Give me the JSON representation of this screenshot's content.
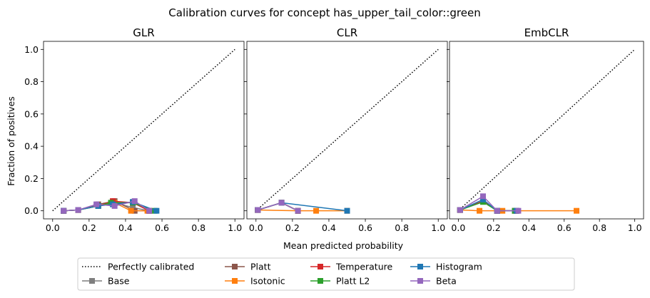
{
  "chart_data": {
    "type": "line",
    "title": "Calibration curves for concept has_upper_tail_color::green",
    "xlabel": "Mean predicted probability",
    "ylabel": "Fraction of positives",
    "xlim": [
      -0.05,
      1.05
    ],
    "ylim": [
      -0.05,
      1.05
    ],
    "xticks": [
      "0.0",
      "0.2",
      "0.4",
      "0.6",
      "0.8",
      "1.0"
    ],
    "yticks": [
      "0.0",
      "0.2",
      "0.4",
      "0.6",
      "0.8",
      "1.0"
    ],
    "grid": false,
    "shared_y": true,
    "legend": {
      "placement": "bottom-center",
      "columns": 5,
      "entries": [
        {
          "name": "Perfectly calibrated",
          "color": "#000000",
          "style": "dotted"
        },
        {
          "name": "Base",
          "color": "#7f7f7f",
          "style": "square"
        },
        {
          "name": "Platt",
          "color": "#8c564b",
          "style": "square"
        },
        {
          "name": "Isotonic",
          "color": "#ff7f0e",
          "style": "square"
        },
        {
          "name": "Temperature",
          "color": "#d62728",
          "style": "square"
        },
        {
          "name": "Platt L2",
          "color": "#2ca02c",
          "style": "square"
        },
        {
          "name": "Histogram",
          "color": "#1f77b4",
          "style": "square"
        },
        {
          "name": "Beta",
          "color": "#9467bd",
          "style": "square"
        }
      ]
    },
    "panels": [
      {
        "title": "GLR",
        "series": [
          {
            "name": "Base",
            "color": "#7f7f7f",
            "points": [
              [
                0.06,
                0.0
              ],
              [
                0.14,
                0.005
              ],
              [
                0.25,
                0.03
              ],
              [
                0.34,
                0.05
              ],
              [
                0.44,
                0.02
              ],
              [
                0.53,
                0.0
              ]
            ]
          },
          {
            "name": "Platt",
            "color": "#8c564b",
            "points": [
              [
                0.06,
                0.0
              ],
              [
                0.14,
                0.005
              ],
              [
                0.25,
                0.04
              ],
              [
                0.34,
                0.06
              ],
              [
                0.45,
                0.0
              ],
              [
                0.53,
                0.0
              ]
            ]
          },
          {
            "name": "Isotonic",
            "color": "#ff7f0e",
            "points": [
              [
                0.06,
                0.0
              ],
              [
                0.14,
                0.005
              ],
              [
                0.25,
                0.03
              ],
              [
                0.34,
                0.05
              ],
              [
                0.43,
                0.0
              ],
              [
                0.52,
                0.0
              ]
            ]
          },
          {
            "name": "Temperature",
            "color": "#d62728",
            "points": [
              [
                0.06,
                0.0
              ],
              [
                0.14,
                0.005
              ],
              [
                0.25,
                0.03
              ],
              [
                0.33,
                0.06
              ],
              [
                0.44,
                0.05
              ],
              [
                0.53,
                0.0
              ]
            ]
          },
          {
            "name": "Platt L2",
            "color": "#2ca02c",
            "points": [
              [
                0.06,
                0.0
              ],
              [
                0.14,
                0.005
              ],
              [
                0.25,
                0.03
              ],
              [
                0.32,
                0.05
              ],
              [
                0.44,
                0.05
              ],
              [
                0.56,
                0.0
              ]
            ]
          },
          {
            "name": "Histogram",
            "color": "#1f77b4",
            "points": [
              [
                0.06,
                0.0
              ],
              [
                0.14,
                0.005
              ],
              [
                0.25,
                0.03
              ],
              [
                0.33,
                0.04
              ],
              [
                0.44,
                0.055
              ],
              [
                0.57,
                0.0
              ]
            ]
          },
          {
            "name": "Beta",
            "color": "#9467bd",
            "points": [
              [
                0.06,
                0.0
              ],
              [
                0.14,
                0.005
              ],
              [
                0.24,
                0.04
              ],
              [
                0.34,
                0.03
              ],
              [
                0.45,
                0.06
              ],
              [
                0.53,
                0.0
              ]
            ]
          }
        ]
      },
      {
        "title": "CLR",
        "series": [
          {
            "name": "Base",
            "color": "#7f7f7f",
            "points": [
              [
                0.01,
                0.005
              ],
              [
                0.14,
                0.05
              ],
              [
                0.23,
                0.0
              ]
            ]
          },
          {
            "name": "Platt",
            "color": "#8c564b",
            "points": [
              [
                0.01,
                0.005
              ],
              [
                0.14,
                0.05
              ],
              [
                0.23,
                0.0
              ]
            ]
          },
          {
            "name": "Isotonic",
            "color": "#ff7f0e",
            "points": [
              [
                0.01,
                0.005
              ],
              [
                0.23,
                0.0
              ],
              [
                0.33,
                0.0
              ],
              [
                0.5,
                0.0
              ]
            ]
          },
          {
            "name": "Temperature",
            "color": "#d62728",
            "points": [
              [
                0.01,
                0.005
              ],
              [
                0.14,
                0.05
              ],
              [
                0.23,
                0.0
              ]
            ]
          },
          {
            "name": "Platt L2",
            "color": "#2ca02c",
            "points": [
              [
                0.01,
                0.005
              ],
              [
                0.14,
                0.05
              ],
              [
                0.23,
                0.0
              ]
            ]
          },
          {
            "name": "Histogram",
            "color": "#1f77b4",
            "points": [
              [
                0.01,
                0.005
              ],
              [
                0.14,
                0.05
              ],
              [
                0.5,
                0.0
              ]
            ]
          },
          {
            "name": "Beta",
            "color": "#9467bd",
            "points": [
              [
                0.01,
                0.005
              ],
              [
                0.14,
                0.05
              ],
              [
                0.23,
                0.0
              ]
            ]
          }
        ]
      },
      {
        "title": "EmbCLR",
        "series": [
          {
            "name": "Base",
            "color": "#7f7f7f",
            "points": [
              [
                0.01,
                0.005
              ],
              [
                0.14,
                0.06
              ],
              [
                0.22,
                0.0
              ],
              [
                0.33,
                0.0
              ]
            ]
          },
          {
            "name": "Platt",
            "color": "#8c564b",
            "points": [
              [
                0.01,
                0.005
              ],
              [
                0.14,
                0.06
              ],
              [
                0.22,
                0.0
              ],
              [
                0.33,
                0.0
              ]
            ]
          },
          {
            "name": "Isotonic",
            "color": "#ff7f0e",
            "points": [
              [
                0.01,
                0.005
              ],
              [
                0.12,
                0.0
              ],
              [
                0.25,
                0.0
              ],
              [
                0.67,
                0.0
              ]
            ]
          },
          {
            "name": "Temperature",
            "color": "#d62728",
            "points": [
              [
                0.01,
                0.005
              ],
              [
                0.14,
                0.06
              ],
              [
                0.22,
                0.0
              ],
              [
                0.32,
                0.0
              ]
            ]
          },
          {
            "name": "Platt L2",
            "color": "#2ca02c",
            "points": [
              [
                0.01,
                0.005
              ],
              [
                0.14,
                0.055
              ],
              [
                0.22,
                0.0
              ],
              [
                0.32,
                0.0
              ]
            ]
          },
          {
            "name": "Histogram",
            "color": "#1f77b4",
            "points": [
              [
                0.01,
                0.005
              ],
              [
                0.14,
                0.07
              ],
              [
                0.22,
                0.0
              ],
              [
                0.33,
                0.0
              ]
            ]
          },
          {
            "name": "Beta",
            "color": "#9467bd",
            "points": [
              [
                0.01,
                0.005
              ],
              [
                0.14,
                0.09
              ],
              [
                0.22,
                0.0
              ],
              [
                0.34,
                0.0
              ]
            ]
          }
        ]
      }
    ]
  }
}
